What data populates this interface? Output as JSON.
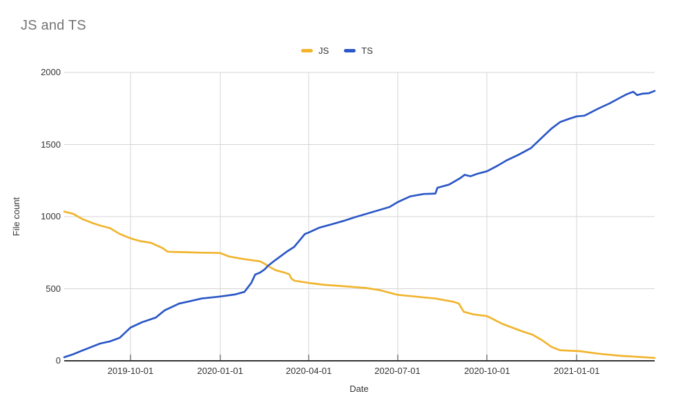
{
  "chart": {
    "title_color": "#757575",
    "axis_text_color": "#333333",
    "grid_color": "#d4d4d4",
    "axis_line_color": "#333333",
    "background": "#ffffff"
  },
  "chart_data": {
    "type": "line",
    "title": "JS and TS",
    "xlabel": "Date",
    "ylabel": "File count",
    "ylim": [
      0,
      2000
    ],
    "yticks": [
      0,
      500,
      1000,
      1500,
      2000
    ],
    "xticks": [
      "2019-10-01",
      "2020-01-01",
      "2020-04-01",
      "2020-07-01",
      "2020-10-01",
      "2021-01-01"
    ],
    "x_range": [
      "2019-07-25",
      "2021-03-22"
    ],
    "grid": true,
    "legend_position": "top",
    "series": [
      {
        "name": "JS",
        "color": "#f1b42c",
        "points": [
          [
            "2019-07-25",
            1035
          ],
          [
            "2019-08-03",
            1020
          ],
          [
            "2019-08-12",
            985
          ],
          [
            "2019-08-22",
            958
          ],
          [
            "2019-08-31",
            938
          ],
          [
            "2019-09-10",
            920
          ],
          [
            "2019-09-20",
            880
          ],
          [
            "2019-10-01",
            850
          ],
          [
            "2019-10-11",
            830
          ],
          [
            "2019-10-22",
            818
          ],
          [
            "2019-11-03",
            782
          ],
          [
            "2019-11-08",
            757
          ],
          [
            "2019-11-14",
            755
          ],
          [
            "2019-11-28",
            753
          ],
          [
            "2019-12-13",
            750
          ],
          [
            "2020-01-01",
            748
          ],
          [
            "2020-01-10",
            724
          ],
          [
            "2020-01-21",
            710
          ],
          [
            "2020-01-31",
            700
          ],
          [
            "2020-02-11",
            690
          ],
          [
            "2020-02-16",
            672
          ],
          [
            "2020-02-19",
            658
          ],
          [
            "2020-02-27",
            628
          ],
          [
            "2020-03-07",
            612
          ],
          [
            "2020-03-12",
            600
          ],
          [
            "2020-03-14",
            572
          ],
          [
            "2020-03-17",
            556
          ],
          [
            "2020-04-01",
            540
          ],
          [
            "2020-04-17",
            527
          ],
          [
            "2020-05-07",
            517
          ],
          [
            "2020-05-30",
            505
          ],
          [
            "2020-06-13",
            490
          ],
          [
            "2020-07-01",
            458
          ],
          [
            "2020-07-19",
            446
          ],
          [
            "2020-08-09",
            432
          ],
          [
            "2020-08-27",
            410
          ],
          [
            "2020-09-02",
            397
          ],
          [
            "2020-09-07",
            340
          ],
          [
            "2020-09-17",
            322
          ],
          [
            "2020-10-01",
            310
          ],
          [
            "2020-10-17",
            255
          ],
          [
            "2020-11-05",
            207
          ],
          [
            "2020-11-17",
            180
          ],
          [
            "2020-11-26",
            145
          ],
          [
            "2020-12-06",
            97
          ],
          [
            "2020-12-15",
            73
          ],
          [
            "2021-01-04",
            67
          ],
          [
            "2021-01-24",
            49
          ],
          [
            "2021-02-16",
            34
          ],
          [
            "2021-03-11",
            25
          ],
          [
            "2021-03-22",
            20
          ]
        ]
      },
      {
        "name": "TS",
        "color": "#2a56c6",
        "points": [
          [
            "2019-07-25",
            25
          ],
          [
            "2019-08-03",
            45
          ],
          [
            "2019-08-12",
            70
          ],
          [
            "2019-08-22",
            96
          ],
          [
            "2019-08-31",
            120
          ],
          [
            "2019-09-10",
            135
          ],
          [
            "2019-09-20",
            160
          ],
          [
            "2019-09-27",
            205
          ],
          [
            "2019-10-01",
            230
          ],
          [
            "2019-10-13",
            268
          ],
          [
            "2019-10-27",
            300
          ],
          [
            "2019-11-05",
            350
          ],
          [
            "2019-11-20",
            397
          ],
          [
            "2019-11-30",
            412
          ],
          [
            "2019-12-13",
            432
          ],
          [
            "2020-01-01",
            446
          ],
          [
            "2020-01-16",
            460
          ],
          [
            "2020-01-26",
            478
          ],
          [
            "2020-02-02",
            540
          ],
          [
            "2020-02-06",
            598
          ],
          [
            "2020-02-11",
            612
          ],
          [
            "2020-02-16",
            636
          ],
          [
            "2020-02-19",
            658
          ],
          [
            "2020-02-25",
            690
          ],
          [
            "2020-03-03",
            725
          ],
          [
            "2020-03-10",
            760
          ],
          [
            "2020-03-17",
            790
          ],
          [
            "2020-03-25",
            855
          ],
          [
            "2020-03-28",
            880
          ],
          [
            "2020-04-01",
            890
          ],
          [
            "2020-04-12",
            924
          ],
          [
            "2020-04-25",
            948
          ],
          [
            "2020-05-07",
            971
          ],
          [
            "2020-05-18",
            995
          ],
          [
            "2020-05-30",
            1019
          ],
          [
            "2020-06-11",
            1043
          ],
          [
            "2020-06-23",
            1067
          ],
          [
            "2020-07-01",
            1100
          ],
          [
            "2020-07-14",
            1140
          ],
          [
            "2020-07-28",
            1157
          ],
          [
            "2020-08-09",
            1160
          ],
          [
            "2020-08-11",
            1200
          ],
          [
            "2020-08-23",
            1222
          ],
          [
            "2020-09-03",
            1265
          ],
          [
            "2020-09-08",
            1290
          ],
          [
            "2020-09-14",
            1280
          ],
          [
            "2020-09-21",
            1297
          ],
          [
            "2020-10-01",
            1315
          ],
          [
            "2020-10-12",
            1354
          ],
          [
            "2020-10-21",
            1390
          ],
          [
            "2020-11-02",
            1428
          ],
          [
            "2020-11-15",
            1475
          ],
          [
            "2020-11-26",
            1546
          ],
          [
            "2020-12-06",
            1610
          ],
          [
            "2020-12-15",
            1656
          ],
          [
            "2020-12-24",
            1678
          ],
          [
            "2021-01-01",
            1695
          ],
          [
            "2021-01-09",
            1700
          ],
          [
            "2021-01-17",
            1728
          ],
          [
            "2021-01-24",
            1752
          ],
          [
            "2021-02-04",
            1786
          ],
          [
            "2021-02-14",
            1823
          ],
          [
            "2021-02-21",
            1848
          ],
          [
            "2021-02-28",
            1866
          ],
          [
            "2021-03-04",
            1843
          ],
          [
            "2021-03-09",
            1852
          ],
          [
            "2021-03-16",
            1856
          ],
          [
            "2021-03-22",
            1872
          ]
        ]
      }
    ]
  }
}
